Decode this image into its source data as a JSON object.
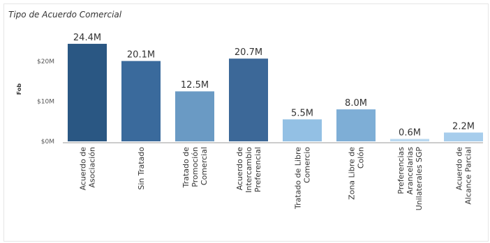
{
  "chart_data": {
    "type": "bar",
    "title": "Tipo de Acuerdo Comercial",
    "ylabel": "Fob",
    "ylim": [
      0,
      27
    ],
    "yticks": [
      {
        "value": 0,
        "label": "$0M"
      },
      {
        "value": 10,
        "label": "$10M"
      },
      {
        "value": 20,
        "label": "$20M"
      }
    ],
    "categories": [
      [
        "Acuerdo de",
        "Asociación"
      ],
      [
        "Sin Tratado"
      ],
      [
        "Tratado de",
        "Promoción",
        "Comercial"
      ],
      [
        "Acuerdo de",
        "Intercambio",
        "Preferencial"
      ],
      [
        "Tratado de Libre",
        "Comercio"
      ],
      [
        "Zona Libre de",
        "Colón"
      ],
      [
        "Preferencias",
        "Arancelarias",
        "Unilaterales SGP"
      ],
      [
        "Acuerdo de",
        "Alcance Parcial"
      ]
    ],
    "values": [
      24.4,
      20.1,
      12.5,
      20.7,
      5.5,
      8.0,
      0.6,
      2.2
    ],
    "data_labels": [
      "24.4M",
      "20.1M",
      "12.5M",
      "20.7M",
      "5.5M",
      "8.0M",
      "0.6M",
      "2.2M"
    ],
    "colors": [
      "#2a5783",
      "#3a6a9c",
      "#6a9ac4",
      "#3c6898",
      "#93c0e4",
      "#7eaed6",
      "#b9d8f1",
      "#a7cdec"
    ],
    "grid": false,
    "legend": "none"
  }
}
